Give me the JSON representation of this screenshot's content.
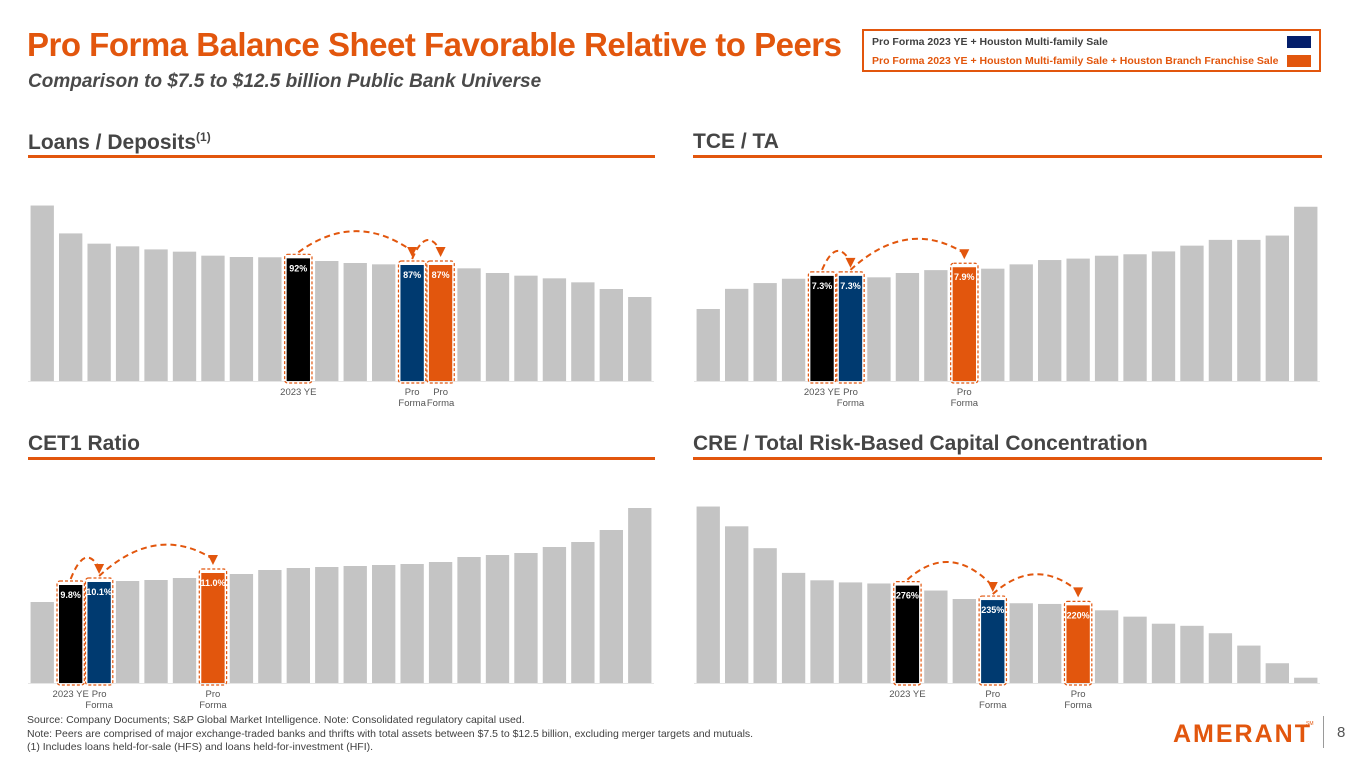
{
  "header": {
    "title": "Pro Forma Balance Sheet Favorable Relative to Peers",
    "subtitle": "Comparison to $7.5 to $12.5 billion Public Bank Universe"
  },
  "legend": {
    "items": [
      {
        "label": "Pro Forma 2023 YE + Houston Multi-family Sale",
        "color": "#041e6b"
      },
      {
        "label": "Pro Forma 2023 YE + Houston Multi-family Sale + Houston Branch Franchise Sale",
        "color": "#e2560d"
      }
    ]
  },
  "colors": {
    "peer": "#c4c4c4",
    "ye": "#000000",
    "proforma1": "#003a70",
    "proforma2": "#e2560d",
    "accent": "#e2560d"
  },
  "chart_data": [
    {
      "id": "loans",
      "type": "bar",
      "title": "Loans / Deposits",
      "title_sup": "(1)",
      "unit": "%",
      "ylim": [
        0,
        135
      ],
      "values": [
        131.6,
        110.7,
        103,
        101,
        98.7,
        97,
        94,
        93,
        92.8,
        92,
        90,
        88.5,
        87.5,
        87,
        87,
        84.5,
        81,
        79,
        77,
        74,
        69,
        63
      ],
      "highlights": [
        {
          "index": 9,
          "kind": "ye",
          "label": "92%",
          "category": "2023 YE"
        },
        {
          "index": 13,
          "kind": "proforma1",
          "label": "87%",
          "category": "Pro Forma"
        },
        {
          "index": 14,
          "kind": "proforma2",
          "label": "87%",
          "category": "Pro Forma"
        }
      ],
      "arrows": [
        [
          9,
          13
        ],
        [
          13,
          14
        ]
      ]
    },
    {
      "id": "tce",
      "type": "bar",
      "title": "TCE / TA",
      "title_sup": "",
      "unit": "%",
      "ylim": [
        0,
        12.5
      ],
      "values": [
        5.0,
        6.4,
        6.8,
        7.1,
        7.3,
        7.3,
        7.2,
        7.5,
        7.7,
        7.9,
        7.8,
        8.1,
        8.4,
        8.5,
        8.7,
        8.8,
        9.0,
        9.4,
        9.8,
        9.8,
        10.1,
        12.1
      ],
      "highlights": [
        {
          "index": 4,
          "kind": "ye",
          "label": "7.3%",
          "category": "2023 YE"
        },
        {
          "index": 5,
          "kind": "proforma1",
          "label": "7.3%",
          "category": "Pro Forma"
        },
        {
          "index": 9,
          "kind": "proforma2",
          "label": "7.9%",
          "category": "Pro Forma"
        }
      ],
      "arrows": [
        [
          4,
          5
        ],
        [
          5,
          9
        ]
      ]
    },
    {
      "id": "cet1",
      "type": "bar",
      "title": "CET1 Ratio",
      "title_sup": "",
      "unit": "%",
      "ylim": [
        0,
        18
      ],
      "values": [
        8.1,
        9.8,
        10.1,
        10.2,
        10.3,
        10.5,
        11.0,
        10.9,
        11.3,
        11.5,
        11.6,
        11.7,
        11.8,
        11.9,
        12.1,
        12.6,
        12.8,
        13.0,
        13.6,
        14.1,
        15.3,
        17.5
      ],
      "highlights": [
        {
          "index": 1,
          "kind": "ye",
          "label": "9.8%",
          "category": "2023 YE"
        },
        {
          "index": 2,
          "kind": "proforma1",
          "label": "10.1%",
          "category": "Pro Forma"
        },
        {
          "index": 6,
          "kind": "proforma2",
          "label": "11.0%",
          "category": "Pro Forma"
        }
      ],
      "arrows": [
        [
          1,
          2
        ],
        [
          2,
          6
        ]
      ]
    },
    {
      "id": "cre",
      "type": "bar",
      "title": "CRE / Total Risk-Based Capital Concentration",
      "title_sup": "",
      "unit": "%",
      "ylim": [
        0,
        510
      ],
      "values": [
        500,
        444,
        382,
        312,
        291,
        285,
        282,
        276,
        262,
        238,
        235,
        226,
        224,
        220,
        206,
        188,
        168,
        162,
        141,
        106,
        56,
        15
      ],
      "highlights": [
        {
          "index": 7,
          "kind": "ye",
          "label": "276%",
          "category": "2023 YE"
        },
        {
          "index": 10,
          "kind": "proforma1",
          "label": "235%",
          "category": "Pro Forma"
        },
        {
          "index": 13,
          "kind": "proforma2",
          "label": "220%",
          "category": "Pro Forma"
        }
      ],
      "arrows": [
        [
          7,
          10
        ],
        [
          10,
          13
        ]
      ]
    }
  ],
  "footnotes": [
    "Source: Company Documents; S&P Global Market Intelligence. Note: Consolidated regulatory capital used.",
    "Note: Peers are comprised of major exchange-traded banks and thrifts with total assets between $7.5 to $12.5 billion, excluding merger targets and mutuals.",
    "(1) Includes loans held-for-sale (HFS) and loans held-for-investment (HFI)."
  ],
  "footer": {
    "logo": "AMERANT",
    "logo_mark": "SM",
    "page_number": "8"
  }
}
